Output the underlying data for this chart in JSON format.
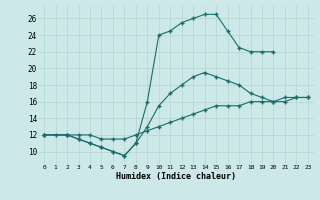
{
  "xlabel": "Humidex (Indice chaleur)",
  "background_color": "#cce8e8",
  "line_color": "#1a6b6b",
  "grid_color": "#b8d8d0",
  "xlim": [
    -0.5,
    23.5
  ],
  "ylim": [
    8.5,
    27.5
  ],
  "xticks": [
    0,
    1,
    2,
    3,
    4,
    5,
    6,
    7,
    8,
    9,
    10,
    11,
    12,
    13,
    14,
    15,
    16,
    17,
    18,
    19,
    20,
    21,
    22,
    23
  ],
  "yticks": [
    10,
    12,
    14,
    16,
    18,
    20,
    22,
    24,
    26
  ],
  "line1_x": [
    0,
    1,
    2,
    3,
    4,
    5,
    6,
    7,
    8,
    9,
    10,
    11,
    12,
    13,
    14,
    15,
    16,
    17,
    18,
    19,
    20
  ],
  "line1_y": [
    12,
    12,
    12,
    11.5,
    11,
    10.5,
    10,
    9.5,
    11,
    16,
    24,
    24.5,
    25.5,
    26,
    26.5,
    26.5,
    24.5,
    22.5,
    22,
    22,
    22
  ],
  "line2_x": [
    0,
    2,
    3,
    4,
    5,
    6,
    7,
    8,
    9,
    10,
    11,
    12,
    13,
    14,
    15,
    16,
    17,
    18,
    19,
    20,
    21,
    22,
    23
  ],
  "line2_y": [
    12,
    12,
    11.5,
    11,
    10.5,
    10,
    9.5,
    11,
    13,
    15.5,
    17,
    18,
    19,
    19.5,
    19,
    18.5,
    18,
    17,
    16.5,
    16,
    16,
    16.5,
    16.5
  ],
  "line3_x": [
    0,
    2,
    3,
    4,
    5,
    6,
    7,
    8,
    9,
    10,
    11,
    12,
    13,
    14,
    15,
    16,
    17,
    18,
    19,
    20,
    21,
    22,
    23
  ],
  "line3_y": [
    12,
    12,
    12,
    12,
    11.5,
    11.5,
    11.5,
    12,
    12.5,
    13,
    13.5,
    14,
    14.5,
    15,
    15.5,
    15.5,
    15.5,
    16,
    16,
    16,
    16.5,
    16.5,
    16.5
  ]
}
